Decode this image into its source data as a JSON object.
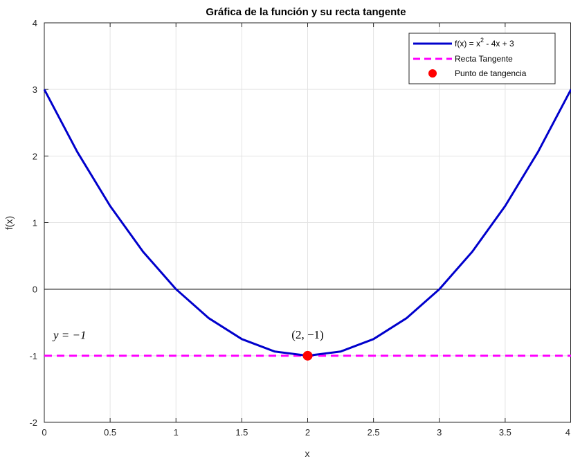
{
  "chart_data": {
    "type": "line",
    "title": "Gráfica de la función y su recta tangente",
    "xlabel": "x",
    "ylabel": "f(x)",
    "xlim": [
      0,
      4
    ],
    "ylim": [
      -2,
      4
    ],
    "xticks": [
      0,
      0.5,
      1,
      1.5,
      2,
      2.5,
      3,
      3.5,
      4
    ],
    "xtick_labels": [
      "0",
      "0.5",
      "1",
      "1.5",
      "2",
      "2.5",
      "3",
      "3.5",
      "4"
    ],
    "yticks": [
      -2,
      -1,
      0,
      1,
      2,
      3,
      4
    ],
    "ytick_labels": [
      "-2",
      "-1",
      "0",
      "1",
      "2",
      "3",
      "4"
    ],
    "grid": true,
    "legend_position": "top-right",
    "series": [
      {
        "name": "f(x) = x² - 4x + 3",
        "name_base": "f(x) = x",
        "name_sup": "2",
        "name_rest": " - 4x + 3",
        "kind": "curve",
        "color": "#0000cc",
        "x": [
          0,
          0.25,
          0.5,
          0.75,
          1,
          1.25,
          1.5,
          1.75,
          2,
          2.25,
          2.5,
          2.75,
          3,
          3.25,
          3.5,
          3.75,
          4
        ],
        "y": [
          3,
          2.0625,
          1.25,
          0.5625,
          0,
          -0.4375,
          -0.75,
          -0.9375,
          -1,
          -0.9375,
          -0.75,
          -0.4375,
          0,
          0.5625,
          1.25,
          2.0625,
          3
        ]
      },
      {
        "name": "Recta Tangente",
        "kind": "dashed",
        "color": "#ff00ff",
        "x": [
          0,
          4
        ],
        "y": [
          -1,
          -1
        ]
      },
      {
        "name": "Punto de tangencia",
        "kind": "marker",
        "color": "#ff0000",
        "x": [
          2
        ],
        "y": [
          -1
        ]
      }
    ],
    "reference_line": {
      "y": 0,
      "color": "#000000"
    },
    "annotations": [
      {
        "text": "y = −1",
        "x": 0.1,
        "y": -0.75
      },
      {
        "text": "(2, −1)",
        "x": 2,
        "y": -0.75
      }
    ]
  }
}
